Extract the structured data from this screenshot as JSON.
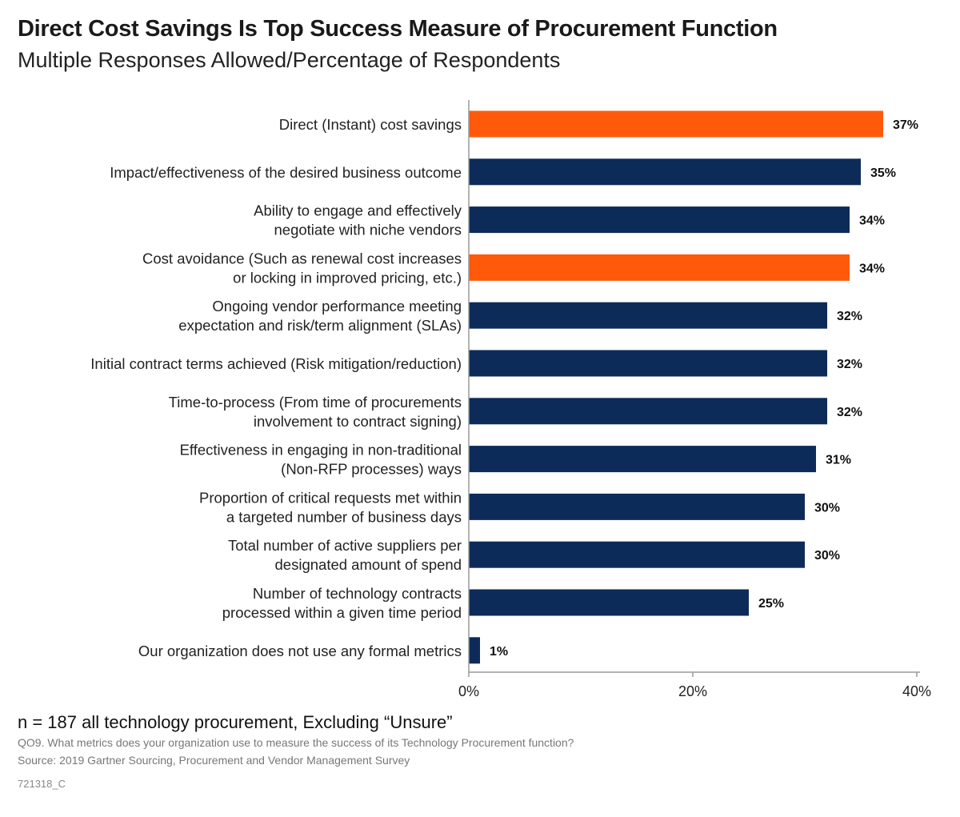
{
  "header": {
    "title": "Direct Cost Savings Is Top Success Measure of Procurement Function",
    "subtitle": "Multiple Responses Allowed/Percentage of Respondents"
  },
  "footer": {
    "sample_note": "n = 187 all technology procurement, Excluding “Unsure”",
    "question": "QO9. What metrics does your organization use to measure the success of its Technology Procurement function?",
    "source": "Source: 2019 Gartner Sourcing, Procurement and Vendor Management Survey",
    "id": "721318_C"
  },
  "colors": {
    "highlight": "#ff5a0a",
    "standard": "#0d2b58",
    "axis": "#9a9a9a"
  },
  "chart_data": {
    "type": "bar",
    "orientation": "horizontal",
    "title": "Direct Cost Savings Is Top Success Measure of Procurement Function",
    "subtitle": "Multiple Responses Allowed/Percentage of Respondents",
    "categories": [
      [
        "Direct (Instant) cost savings"
      ],
      [
        "Impact/effectiveness of the desired business outcome"
      ],
      [
        "Ability to engage and effectively",
        "negotiate with niche vendors"
      ],
      [
        "Cost avoidance (Such as renewal cost increases",
        "or locking in improved pricing, etc.)"
      ],
      [
        "Ongoing vendor performance meeting",
        "expectation and risk/term alignment (SLAs)"
      ],
      [
        "Initial contract terms achieved (Risk mitigation/reduction)"
      ],
      [
        "Time-to-process (From time of procurements",
        "involvement to contract signing)"
      ],
      [
        "Effectiveness in engaging in non-traditional",
        "(Non-RFP processes) ways"
      ],
      [
        "Proportion of critical requests met within",
        "a targeted number of business days"
      ],
      [
        "Total number of active suppliers per",
        "designated amount of spend"
      ],
      [
        "Number of technology contracts",
        "processed within a given time period"
      ],
      [
        "Our organization does not use any formal metrics"
      ]
    ],
    "values": [
      37,
      35,
      34,
      34,
      32,
      32,
      32,
      31,
      30,
      30,
      25,
      1
    ],
    "value_labels": [
      "37%",
      "35%",
      "34%",
      "34%",
      "32%",
      "32%",
      "32%",
      "31%",
      "30%",
      "30%",
      "25%",
      "1%"
    ],
    "highlighted": [
      true,
      false,
      false,
      true,
      false,
      false,
      false,
      false,
      false,
      false,
      false,
      false
    ],
    "xlim": [
      0,
      40
    ],
    "xticks": [
      0,
      20,
      40
    ],
    "xtick_labels": [
      "0%",
      "20%",
      "40%"
    ],
    "xlabel": "",
    "ylabel": "",
    "grid": false,
    "legend": "none"
  }
}
